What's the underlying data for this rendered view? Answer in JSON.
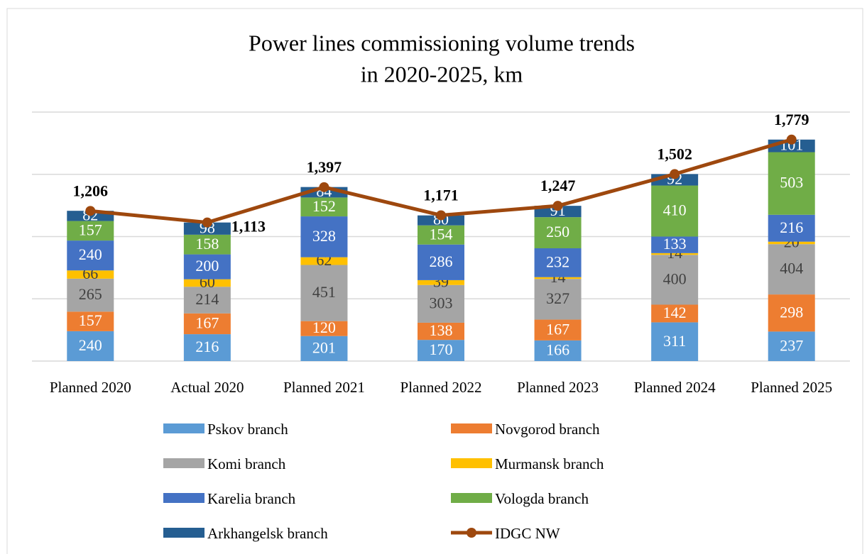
{
  "chart_data": {
    "type": "bar",
    "title": [
      "Power lines commissioning volume trends",
      "in 2020-2025, km"
    ],
    "categories": [
      "Planned 2020",
      "Actual 2020",
      "Planned 2021",
      "Planned 2022",
      "Planned 2023",
      "Planned 2024",
      "Planned 2025"
    ],
    "stacked": true,
    "ylim": [
      0,
      2000
    ],
    "yticks": [
      0,
      500,
      1000,
      1500,
      2000
    ],
    "grid": true,
    "series": [
      {
        "name": "Pskov branch",
        "color": "#5b9bd5",
        "values": [
          240,
          216,
          201,
          170,
          166,
          311,
          237
        ]
      },
      {
        "name": "Novgorod branch",
        "color": "#ed7d31",
        "values": [
          157,
          167,
          120,
          138,
          167,
          142,
          298
        ]
      },
      {
        "name": "Komi branch",
        "color": "#a5a5a5",
        "values": [
          265,
          214,
          451,
          303,
          327,
          400,
          404
        ]
      },
      {
        "name": "Murmansk branch",
        "color": "#ffc000",
        "values": [
          66,
          60,
          62,
          39,
          14,
          14,
          20
        ]
      },
      {
        "name": "Karelia branch",
        "color": "#4472c4",
        "values": [
          240,
          200,
          328,
          286,
          232,
          133,
          216
        ]
      },
      {
        "name": "Vologda branch",
        "color": "#70ad47",
        "values": [
          157,
          158,
          152,
          154,
          250,
          410,
          503
        ]
      },
      {
        "name": "Arkhangelsk branch",
        "color": "#255e91",
        "values": [
          82,
          98,
          84,
          80,
          91,
          92,
          101
        ]
      },
      {
        "name": "IDGC NW",
        "color": "#9e480e",
        "type": "line",
        "values": [
          1206,
          1113,
          1397,
          1171,
          1247,
          1502,
          1779
        ],
        "value_labels": [
          "1,206",
          "1,113",
          "1,397",
          "1,171",
          "1,247",
          "1,502",
          "1,779"
        ]
      }
    ]
  }
}
